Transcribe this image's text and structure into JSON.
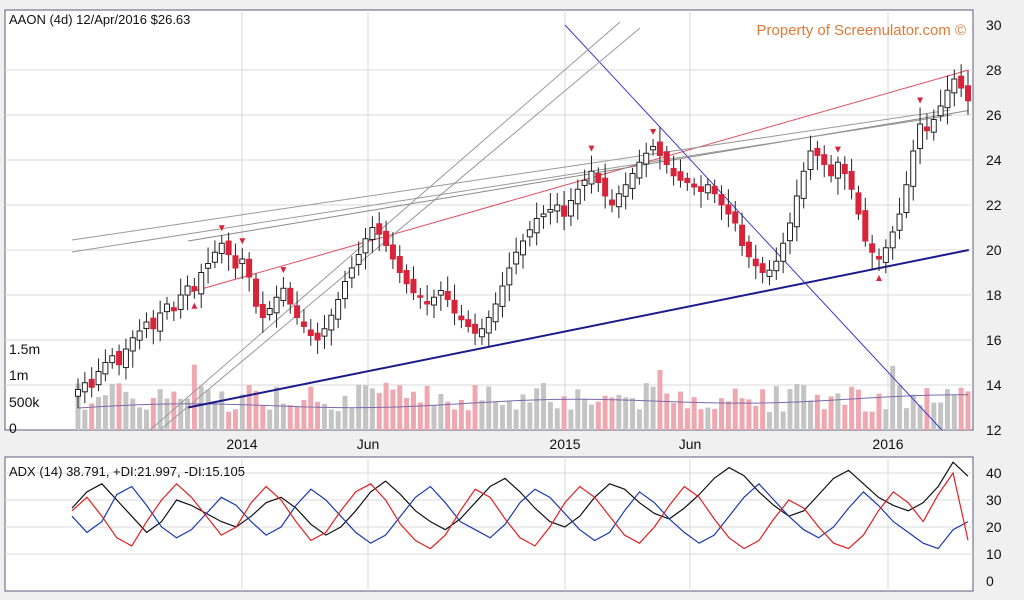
{
  "header": {
    "title": "AAON (4d) 12/Apr/2016 $26.63",
    "watermark": "Property of Screenulator.com ©"
  },
  "chart_data": [
    {
      "type": "candlestick",
      "title": "AAON (4d) 12/Apr/2016 $26.63",
      "x_ticks": [
        "2014",
        "Jun",
        "2015",
        "Jun",
        "2016"
      ],
      "y_ticks": [
        12,
        14,
        16,
        18,
        20,
        22,
        24,
        26,
        28,
        30
      ],
      "ylim": [
        12,
        30
      ],
      "volume_ticks": [
        "0",
        "500k",
        "1m",
        "1.5m"
      ],
      "grid": true,
      "close_series": [
        13.8,
        14.1,
        13.9,
        14.6,
        15.0,
        15.3,
        14.9,
        15.6,
        16.1,
        16.4,
        16.8,
        16.5,
        17.2,
        17.6,
        17.3,
        18.0,
        18.4,
        18.2,
        19.0,
        19.4,
        19.9,
        20.3,
        19.8,
        19.2,
        19.6,
        18.8,
        17.5,
        17.0,
        17.4,
        17.9,
        18.3,
        17.6,
        17.0,
        16.6,
        16.2,
        16.0,
        16.5,
        17.1,
        17.8,
        18.6,
        19.2,
        19.8,
        20.5,
        21.0,
        20.7,
        20.2,
        19.6,
        19.0,
        18.5,
        18.1,
        17.9,
        17.6,
        17.9,
        18.2,
        17.8,
        17.2,
        16.9,
        16.6,
        16.3,
        16.5,
        17.0,
        17.6,
        18.4,
        19.2,
        19.9,
        20.4,
        20.9,
        21.4,
        21.6,
        21.8,
        22.0,
        21.5,
        22.2,
        22.7,
        23.1,
        23.5,
        23.0,
        22.4,
        22.0,
        22.5,
        22.9,
        23.4,
        23.9,
        24.3,
        24.6,
        24.2,
        23.8,
        23.3,
        23.1,
        23.0,
        22.8,
        22.6,
        22.9,
        22.5,
        22.0,
        21.6,
        21.2,
        20.2,
        19.7,
        19.3,
        19.0,
        19.1,
        19.5,
        20.3,
        21.2,
        22.4,
        23.5,
        24.4,
        24.2,
        23.8,
        23.3,
        23.9,
        23.4,
        22.7,
        21.6,
        20.4,
        19.9,
        19.6,
        20.1,
        20.8,
        21.6,
        22.9,
        24.4,
        25.6,
        25.3,
        25.8,
        26.4,
        27.1,
        27.6,
        27.2,
        26.63
      ],
      "trendlines": [
        {
          "from": [
            "2013-11",
            13.0
          ],
          "to": [
            "2016-04",
            20.0
          ],
          "color": "#1a1a8c"
        },
        {
          "from": [
            "2013-11",
            18.1
          ],
          "to": [
            "2016-04",
            28.0
          ],
          "color": "#e05060"
        },
        {
          "from": [
            "2013-11",
            20.4
          ],
          "to": [
            "2016-04",
            26.2
          ],
          "color": "#888888"
        },
        {
          "from": [
            "2015-01",
            30.0
          ],
          "to": [
            "2016-03",
            12.0
          ],
          "color": "#3a3ad0"
        }
      ]
    },
    {
      "type": "line",
      "title": "ADX (14) 38.791, +DI:21.997, -DI:15.105",
      "y_ticks": [
        0,
        10,
        20,
        30,
        40
      ],
      "ylim": [
        0,
        48
      ],
      "series": [
        {
          "name": "ADX",
          "color": "#111111",
          "values": [
            27,
            33,
            36,
            30,
            24,
            18,
            22,
            30,
            28,
            25,
            22,
            20,
            24,
            29,
            31,
            27,
            21,
            17,
            20,
            26,
            33,
            37,
            32,
            26,
            22,
            19,
            23,
            29,
            35,
            38,
            33,
            27,
            22,
            20,
            24,
            31,
            36,
            34,
            29,
            25,
            23,
            27,
            32,
            38,
            42,
            39,
            33,
            28,
            24,
            26,
            32,
            38,
            41,
            36,
            31,
            28,
            26,
            29,
            35,
            44,
            38.8
          ]
        },
        {
          "name": "+DI",
          "color": "#1a3ab0",
          "values": [
            24,
            18,
            22,
            32,
            35,
            28,
            20,
            16,
            19,
            25,
            31,
            28,
            22,
            17,
            20,
            28,
            34,
            30,
            24,
            18,
            14,
            17,
            24,
            31,
            35,
            29,
            22,
            19,
            16,
            21,
            29,
            34,
            31,
            25,
            19,
            15,
            18,
            26,
            33,
            29,
            23,
            18,
            14,
            17,
            24,
            31,
            36,
            30,
            24,
            19,
            16,
            20,
            27,
            33,
            28,
            22,
            18,
            14,
            12,
            19,
            22.0
          ]
        },
        {
          "name": "-DI",
          "color": "#e02020",
          "values": [
            26,
            31,
            24,
            16,
            13,
            22,
            30,
            36,
            31,
            24,
            17,
            20,
            29,
            35,
            30,
            22,
            15,
            18,
            26,
            33,
            36,
            30,
            21,
            15,
            12,
            17,
            26,
            34,
            31,
            23,
            16,
            13,
            20,
            29,
            35,
            31,
            24,
            17,
            14,
            20,
            28,
            35,
            31,
            23,
            16,
            12,
            15,
            23,
            30,
            27,
            20,
            14,
            12,
            17,
            26,
            33,
            29,
            22,
            32,
            40,
            15.1
          ]
        }
      ]
    }
  ]
}
